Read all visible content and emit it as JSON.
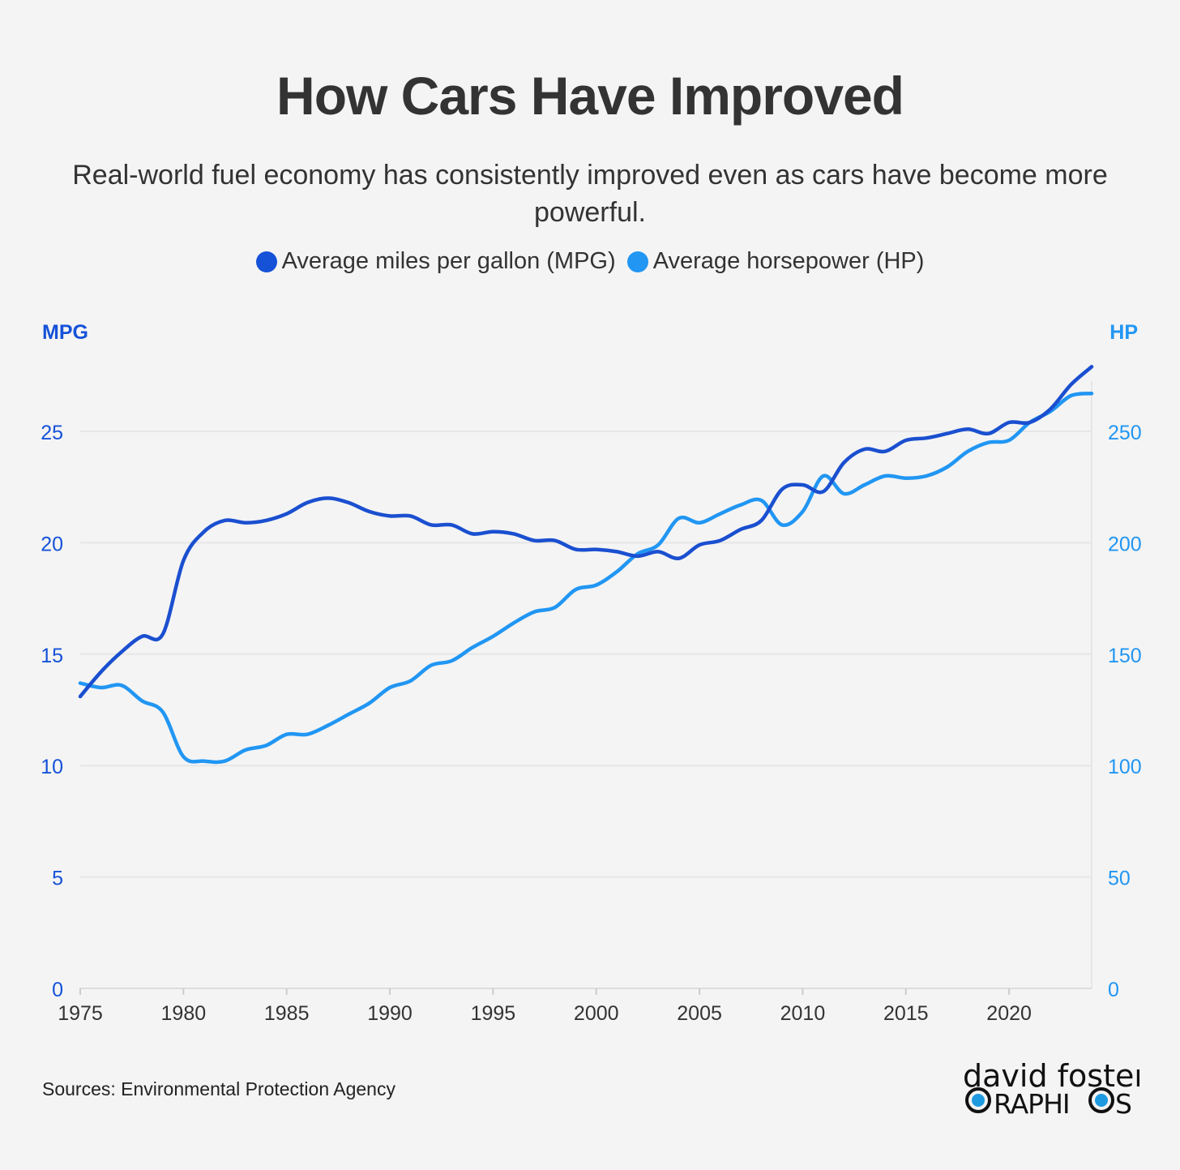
{
  "title": "How Cars Have Improved",
  "subtitle": "Real-world fuel economy has consistently improved even as cars have become more powerful.",
  "legend": [
    {
      "label": "Average miles per gallon (MPG)",
      "color": "#1552d8"
    },
    {
      "label": "Average horsepower (HP)",
      "color": "#2196f3"
    }
  ],
  "source": "Sources: Environmental Protection Agency",
  "logo": {
    "line1": "david foster",
    "line2": "GRAPHICS"
  },
  "chart_data": {
    "type": "line",
    "title": "How Cars Have Improved",
    "x": [
      1975,
      1976,
      1977,
      1978,
      1979,
      1980,
      1981,
      1982,
      1983,
      1984,
      1985,
      1986,
      1987,
      1988,
      1989,
      1990,
      1991,
      1992,
      1993,
      1994,
      1995,
      1996,
      1997,
      1998,
      1999,
      2000,
      2001,
      2002,
      2003,
      2004,
      2005,
      2006,
      2007,
      2008,
      2009,
      2010,
      2011,
      2012,
      2013,
      2014,
      2015,
      2016,
      2017,
      2018,
      2019,
      2020,
      2021,
      2022,
      2023,
      2024
    ],
    "xlim": [
      1975,
      2024
    ],
    "xticks": [
      "1975",
      "1980",
      "1985",
      "1990",
      "1995",
      "2000",
      "2005",
      "2010",
      "2015",
      "2020"
    ],
    "y_left": {
      "label": "MPG",
      "range": [
        0,
        28
      ],
      "ticks": [
        "0",
        "5",
        "10",
        "15",
        "20",
        "25"
      ],
      "color": "#1552d8"
    },
    "y_right": {
      "label": "HP",
      "range": [
        0,
        280
      ],
      "ticks": [
        "0",
        "50",
        "100",
        "150",
        "200",
        "250"
      ],
      "color": "#2196f3"
    },
    "grid": true,
    "legend_position": "top-center",
    "series": [
      {
        "name": "Average miles per gallon (MPG)",
        "axis": "left",
        "color": "#1a4fd0",
        "values": [
          13.1,
          14.2,
          15.1,
          15.8,
          15.9,
          19.2,
          20.5,
          21.0,
          20.9,
          21.0,
          21.3,
          21.8,
          22.0,
          21.8,
          21.4,
          21.2,
          21.2,
          20.8,
          20.8,
          20.4,
          20.5,
          20.4,
          20.1,
          20.1,
          19.7,
          19.7,
          19.6,
          19.4,
          19.6,
          19.3,
          19.9,
          20.1,
          20.6,
          21.0,
          22.4,
          22.6,
          22.3,
          23.6,
          24.2,
          24.1,
          24.6,
          24.7,
          24.9,
          25.1,
          24.9,
          25.4,
          25.4,
          26.0,
          27.1,
          27.9
        ]
      },
      {
        "name": "Average horsepower (HP)",
        "axis": "right",
        "color": "#2196f3",
        "values": [
          137,
          135,
          136,
          129,
          124,
          104,
          102,
          102,
          107,
          109,
          114,
          114,
          118,
          123,
          128,
          135,
          138,
          145,
          147,
          153,
          158,
          164,
          169,
          171,
          179,
          181,
          187,
          195,
          199,
          211,
          209,
          213,
          217,
          219,
          208,
          214,
          230,
          222,
          226,
          230,
          229,
          230,
          234,
          241,
          245,
          246,
          254,
          259,
          266,
          267
        ]
      }
    ]
  }
}
